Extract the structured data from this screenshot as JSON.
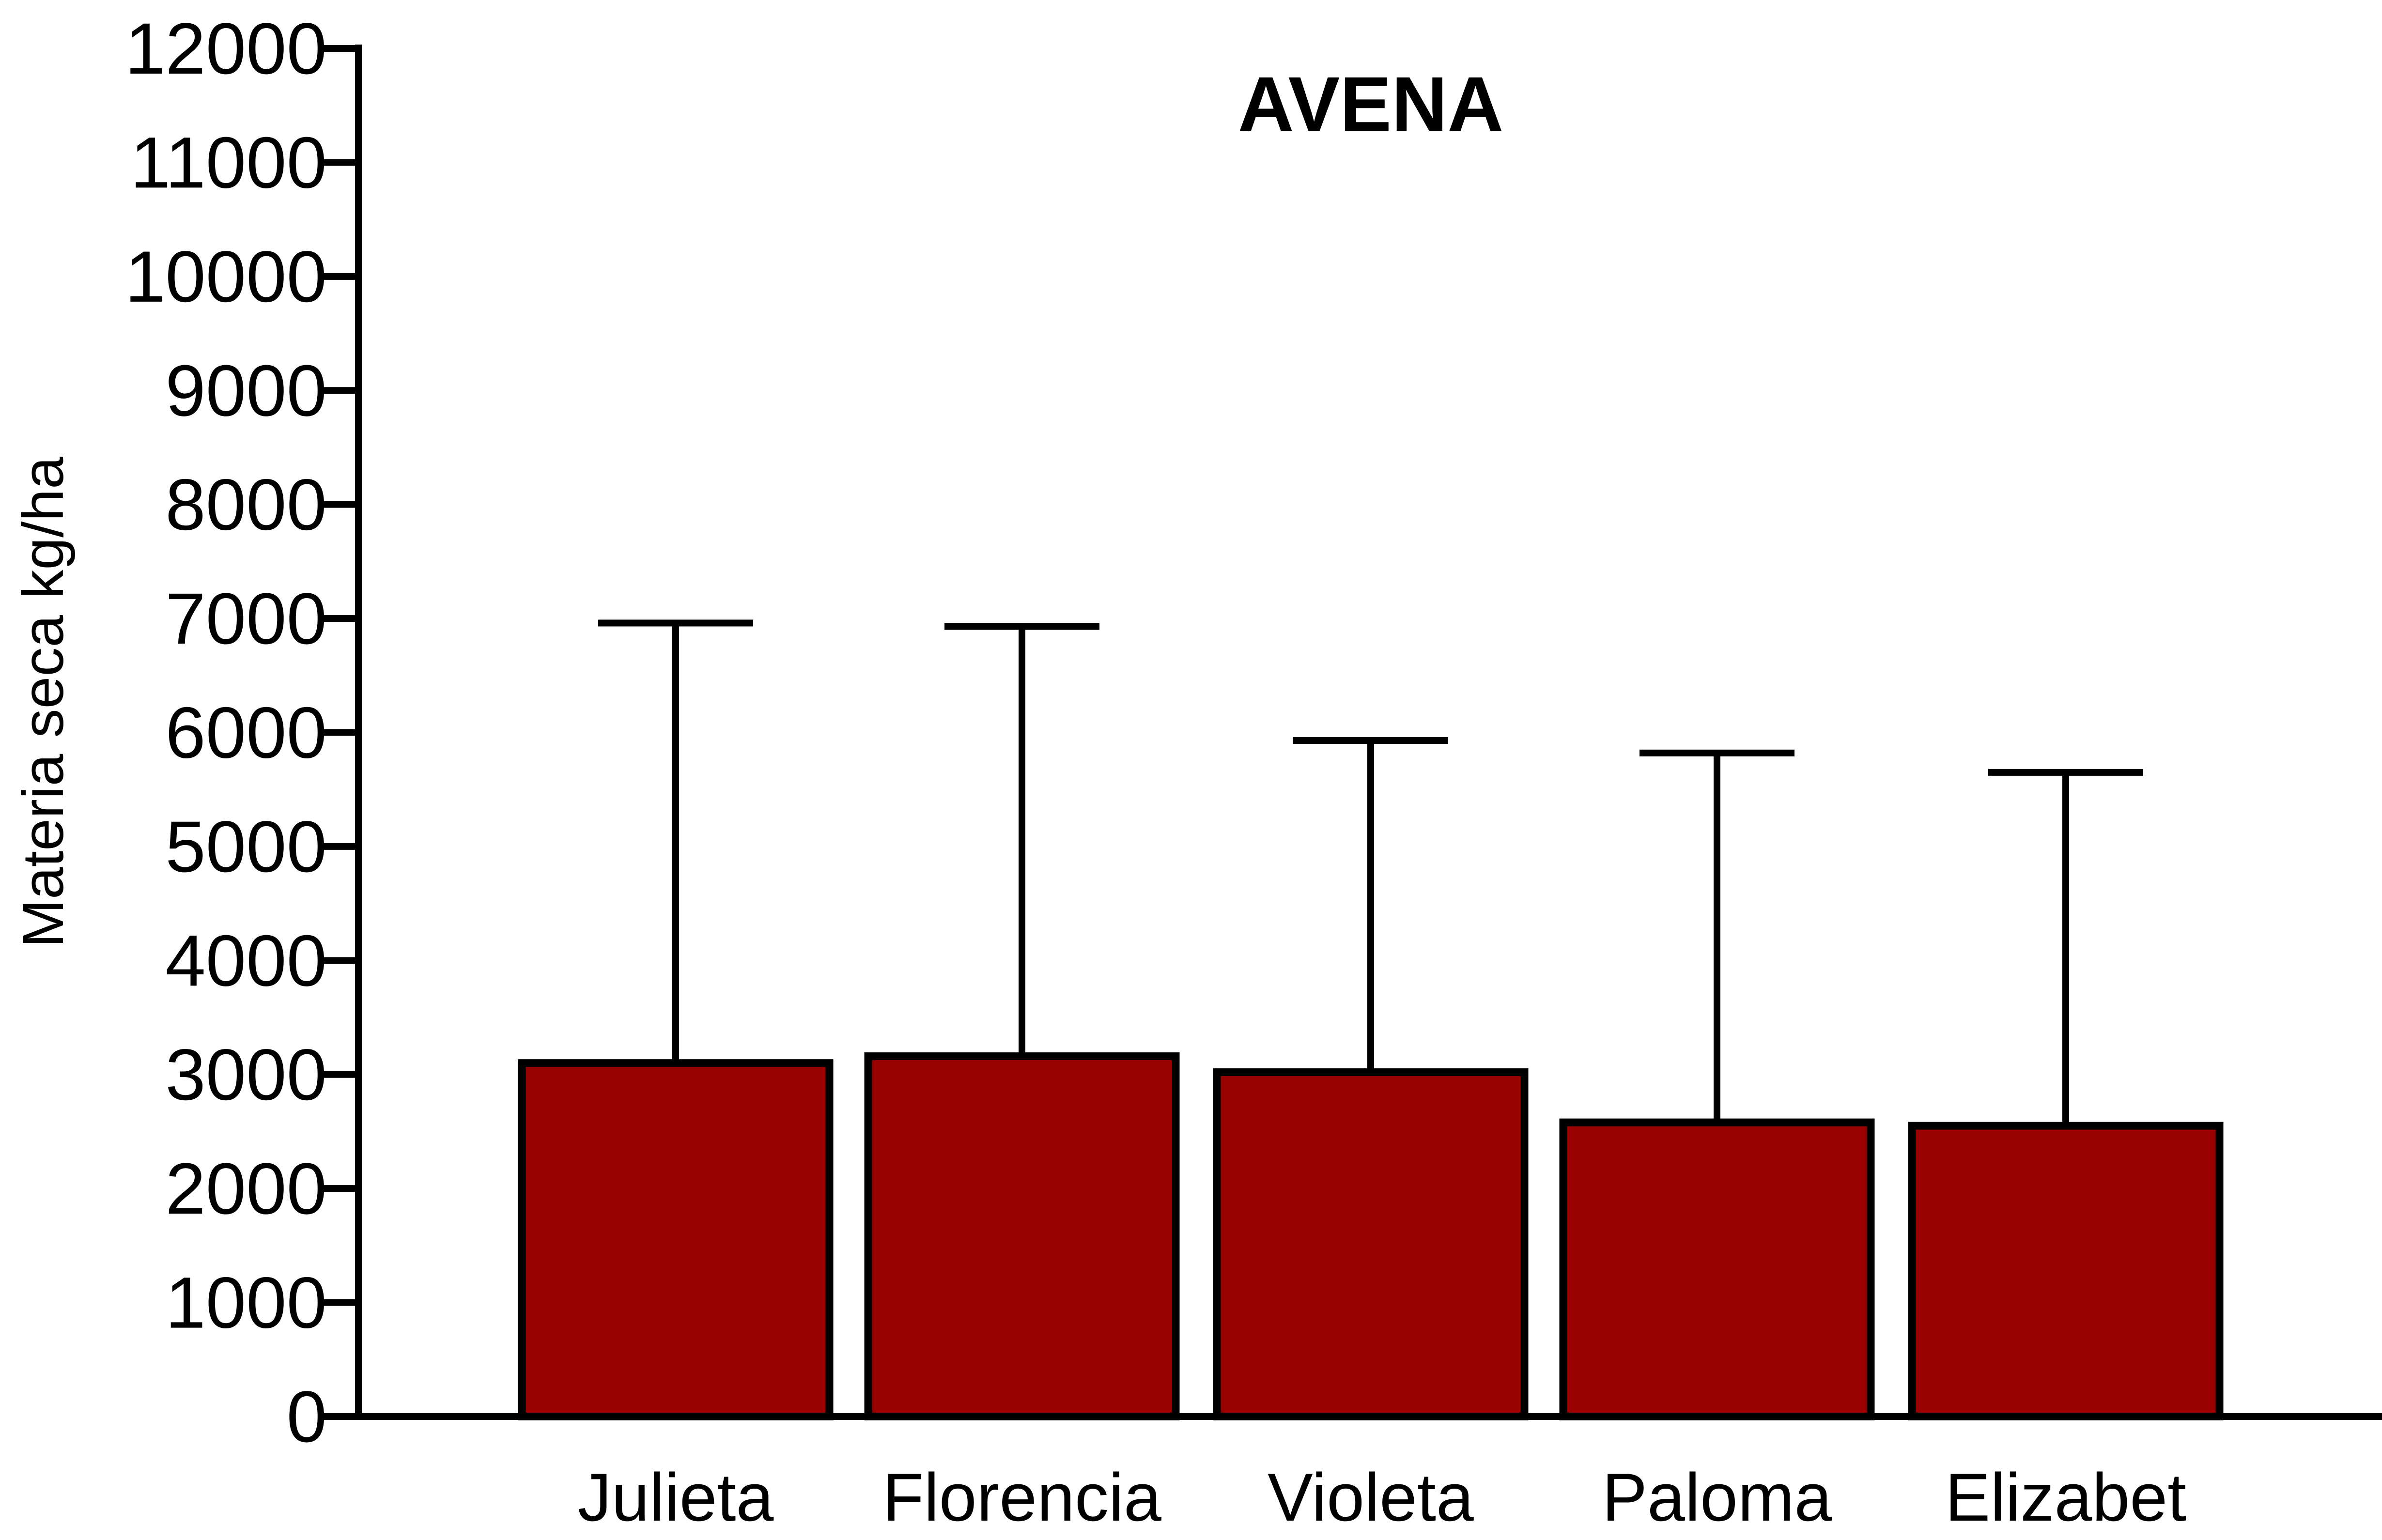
{
  "chart_data": {
    "type": "bar",
    "title": "AVENA",
    "xlabel": "",
    "ylabel": "Materia seca kg/ha",
    "categories": [
      "Julieta",
      "Florencia",
      "Violeta",
      "Paloma",
      "Elizabet"
    ],
    "series": [
      {
        "values": [
          3100,
          3160,
          3020,
          2580,
          2550
        ],
        "error_upper": [
          6960,
          6930,
          5930,
          5820,
          5650
        ]
      }
    ],
    "ylim": [
      0,
      12000
    ],
    "yticks": [
      0,
      1000,
      2000,
      3000,
      4000,
      5000,
      6000,
      7000,
      8000,
      9000,
      10000,
      11000,
      12000
    ],
    "grid": false,
    "legend": "none",
    "colors": {
      "bar_fill": "#990000",
      "outline": "#000000"
    }
  }
}
